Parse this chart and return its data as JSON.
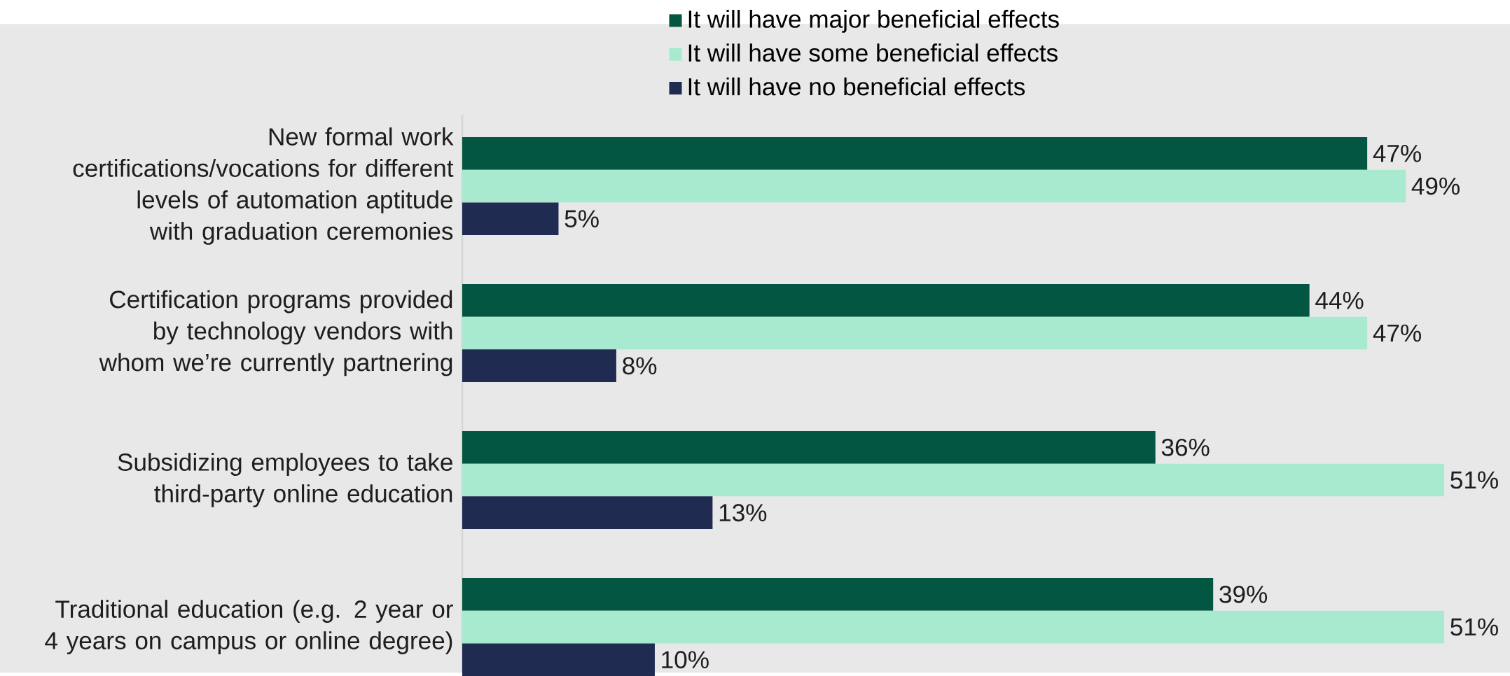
{
  "chart_data": {
    "type": "bar",
    "orientation": "horizontal",
    "legend": "top",
    "categories": [
      "New formal work certifications/vocations for different levels of automation aptitude with graduation ceremonies",
      "Certification programs provided by technology vendors with whom we’re currently partnering",
      "Subsidizing employees to take third-party online education",
      "Traditional education (e.g. 2 year or 4 years on campus or online degree)"
    ],
    "series": [
      {
        "name": "It will have major beneficial effects",
        "color": "#035642",
        "values": [
          47,
          44,
          36,
          39
        ],
        "value_labels": [
          "47%",
          "44%",
          "36%",
          "39%"
        ]
      },
      {
        "name": "It will have some beneficial effects",
        "color": "#a8ead0",
        "values": [
          49,
          47,
          51,
          51
        ],
        "value_labels": [
          "49%",
          "47%",
          "51%",
          "51%"
        ]
      },
      {
        "name": "It will have no beneficial effects",
        "color": "#1f2b50",
        "values": [
          5,
          8,
          13,
          10
        ],
        "value_labels": [
          "5%",
          "8%",
          "13%",
          "10%"
        ]
      }
    ]
  }
}
